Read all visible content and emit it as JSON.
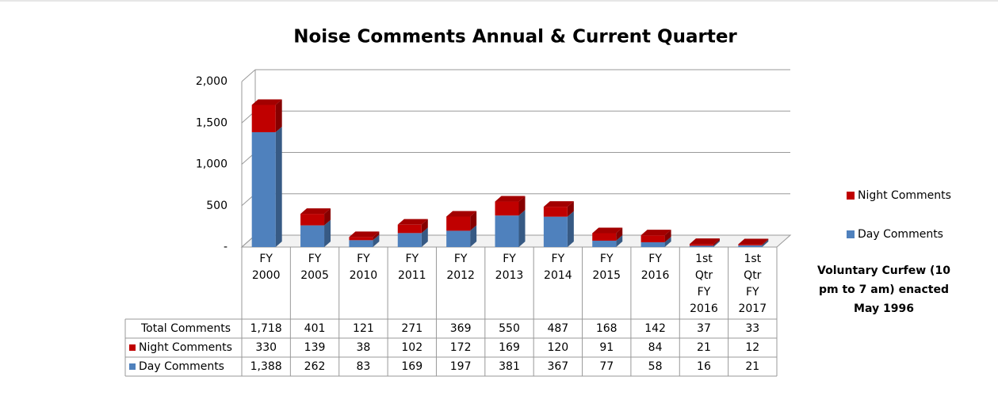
{
  "chart_data": {
    "type": "bar",
    "stacked": true,
    "title": "Noise Comments Annual & Current Quarter",
    "categories": [
      "FY 2000",
      "FY 2005",
      "FY 2010",
      "FY 2011",
      "FY 2012",
      "FY 2013",
      "FY 2014",
      "FY 2015",
      "FY 2016",
      "1st Qtr FY 2016",
      "1st Qtr FY 2017"
    ],
    "series": [
      {
        "name": "Day Comments",
        "color": "#4f81bd",
        "values": [
          1388,
          262,
          83,
          169,
          197,
          381,
          367,
          77,
          58,
          16,
          21
        ],
        "value_labels": [
          "1,388",
          "262",
          "83",
          "169",
          "197",
          "381",
          "367",
          "77",
          "58",
          "16",
          "21"
        ]
      },
      {
        "name": "Night Comments",
        "color": "#c00000",
        "values": [
          330,
          139,
          38,
          102,
          172,
          169,
          120,
          91,
          84,
          21,
          12
        ],
        "value_labels": [
          "330",
          "139",
          "38",
          "102",
          "172",
          "169",
          "120",
          "91",
          "84",
          "21",
          "12"
        ]
      }
    ],
    "totals": {
      "name": "Total Comments",
      "values": [
        1718,
        401,
        121,
        271,
        369,
        550,
        487,
        168,
        142,
        37,
        33
      ],
      "value_labels": [
        "1,718",
        "401",
        "121",
        "271",
        "369",
        "550",
        "487",
        "168",
        "142",
        "37",
        "33"
      ]
    },
    "ylim": [
      0,
      2000
    ],
    "yticks": [
      {
        "value": 0,
        "label": "-"
      },
      500,
      {
        "value": 1000,
        "label": "1,000"
      },
      {
        "value": 1500,
        "label": "1,500"
      },
      {
        "value": 2000,
        "label": "2,000"
      }
    ],
    "grid": true,
    "legend": "right",
    "annotation": [
      "Voluntary Curfew (10",
      "pm to 7 am) enacted",
      "May 1996"
    ]
  }
}
